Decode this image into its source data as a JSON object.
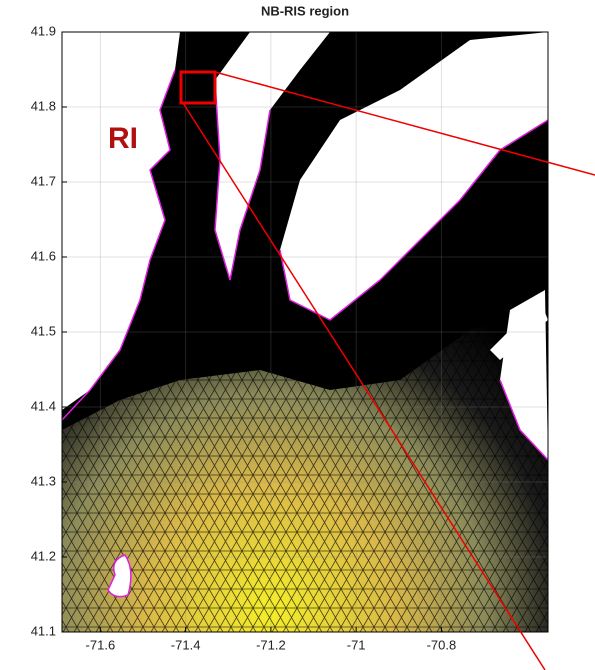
{
  "chart_data": {
    "type": "mesh",
    "title": "NB-RIS region",
    "annotation": "RI",
    "xlim": [
      -71.69,
      -70.55
    ],
    "ylim": [
      41.1,
      41.9
    ],
    "xticks": [
      -71.6,
      -71.4,
      -71.2,
      -71,
      -70.8
    ],
    "yticks": [
      41.1,
      41.2,
      41.3,
      41.4,
      41.5,
      41.6,
      41.7,
      41.8,
      41.9
    ],
    "grid": true
  }
}
